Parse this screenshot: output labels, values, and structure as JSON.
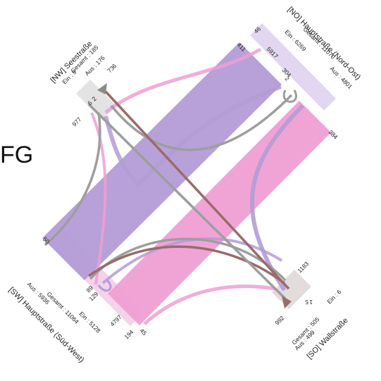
{
  "side_label": "FG",
  "colors": {
    "purple": "#b39cd6",
    "pink": "#ef9fd4",
    "grey": "#9e9e9e",
    "brown": "#9b6b6b",
    "box": "#ddd6ea"
  },
  "arms": {
    "nw": {
      "name": "[NW] Seestraße",
      "gesamt": "Gesamt : 185",
      "ein": "Ein : 9",
      "aus": "Aus : 176"
    },
    "ne": {
      "name": "[NO] Hauptstraße (Nord-Ost)",
      "ein": "Ein : 6269",
      "gesamt": "Gesamt : 11070",
      "aus": "Aus : 4801"
    },
    "sw": {
      "name": "[SW] Hauptstraße (Süd-West)",
      "aus": "Aus : 5936",
      "gesamt": "Gesamt : 11064",
      "ein": "Ein : 5128"
    },
    "se": {
      "name": "[SO] Wallstraße",
      "ein": "Ein : 6",
      "gesamt": "Gesamt : 505",
      "aus": "Aus : 499"
    }
  },
  "counts": {
    "c736": "736",
    "c977": "977",
    "c6": "6",
    "c2": "2",
    "c46": "46",
    "c411": "411",
    "c5917": "5917",
    "c304": "304",
    "c2b": "2",
    "c384": "384",
    "c50": "50",
    "c89": "89",
    "c129": "129",
    "c4797": "4797",
    "c194": "194",
    "c45": "45",
    "c1183": "1183",
    "c992": "992",
    "c5": "5",
    "c1": "1"
  }
}
